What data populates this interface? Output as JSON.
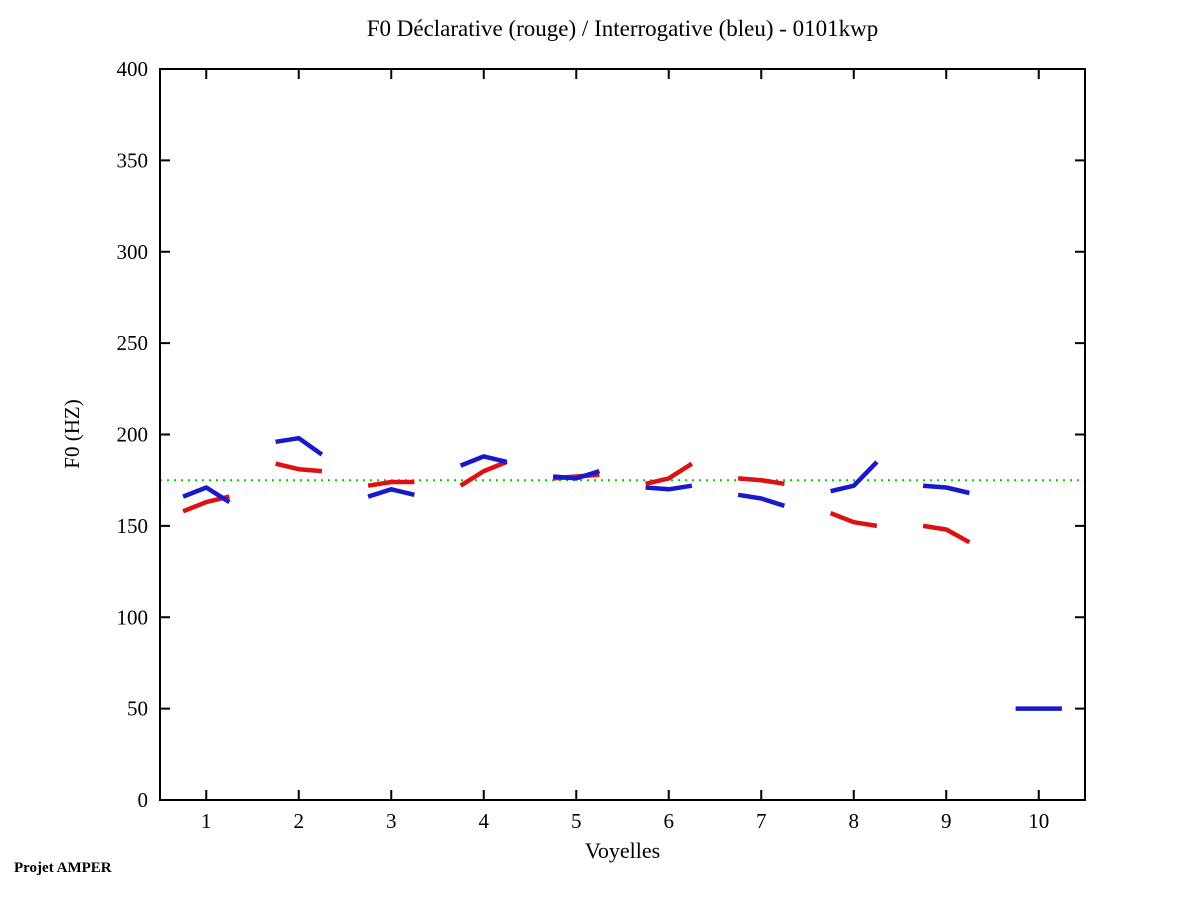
{
  "page": {
    "background": "#ffffff",
    "footer": "Projet AMPER"
  },
  "chart_data": {
    "type": "line",
    "title": "F0 Déclarative (rouge) / Interrogative (bleu) - 0101kwp",
    "xlabel": "Voyelles",
    "ylabel": "F0 (HZ)",
    "xlim": [
      0.5,
      10.5
    ],
    "ylim": [
      0,
      400
    ],
    "xticks": [
      1,
      2,
      3,
      4,
      5,
      6,
      7,
      8,
      9,
      10
    ],
    "yticks": [
      0,
      50,
      100,
      150,
      200,
      250,
      300,
      350,
      400
    ],
    "grid": false,
    "legend_position": "none",
    "axis_color": "#000000",
    "reference_line": {
      "y": 175,
      "color": "#00cc00",
      "style": "dotted",
      "width": 2
    },
    "point_offsets": [
      -0.25,
      0,
      0.25
    ],
    "line_width": 4.5,
    "series": [
      {
        "name": "Déclarative",
        "color": "#dd1111",
        "segments": [
          {
            "vowel": 1,
            "values": [
              158,
              163,
              166
            ]
          },
          {
            "vowel": 2,
            "values": [
              184,
              181,
              180
            ]
          },
          {
            "vowel": 3,
            "values": [
              172,
              174,
              174
            ]
          },
          {
            "vowel": 4,
            "values": [
              172,
              180,
              185
            ]
          },
          {
            "vowel": 5,
            "values": [
              176,
              177,
              178
            ]
          },
          {
            "vowel": 6,
            "values": [
              173,
              176,
              184
            ]
          },
          {
            "vowel": 7,
            "values": [
              176,
              175,
              173
            ]
          },
          {
            "vowel": 8,
            "values": [
              157,
              152,
              150
            ]
          },
          {
            "vowel": 9,
            "values": [
              150,
              148,
              141
            ]
          }
        ]
      },
      {
        "name": "Interrogative",
        "color": "#1818cc",
        "segments": [
          {
            "vowel": 1,
            "values": [
              166,
              171,
              163
            ]
          },
          {
            "vowel": 2,
            "values": [
              196,
              198,
              189
            ]
          },
          {
            "vowel": 3,
            "values": [
              166,
              170,
              167
            ]
          },
          {
            "vowel": 4,
            "values": [
              183,
              188,
              185
            ]
          },
          {
            "vowel": 5,
            "values": [
              177,
              176,
              180
            ]
          },
          {
            "vowel": 6,
            "values": [
              171,
              170,
              172
            ]
          },
          {
            "vowel": 7,
            "values": [
              167,
              165,
              161
            ]
          },
          {
            "vowel": 8,
            "values": [
              169,
              172,
              185
            ]
          },
          {
            "vowel": 9,
            "values": [
              172,
              171,
              168
            ]
          },
          {
            "vowel": 10,
            "values": [
              50,
              50,
              50
            ]
          }
        ]
      }
    ]
  }
}
